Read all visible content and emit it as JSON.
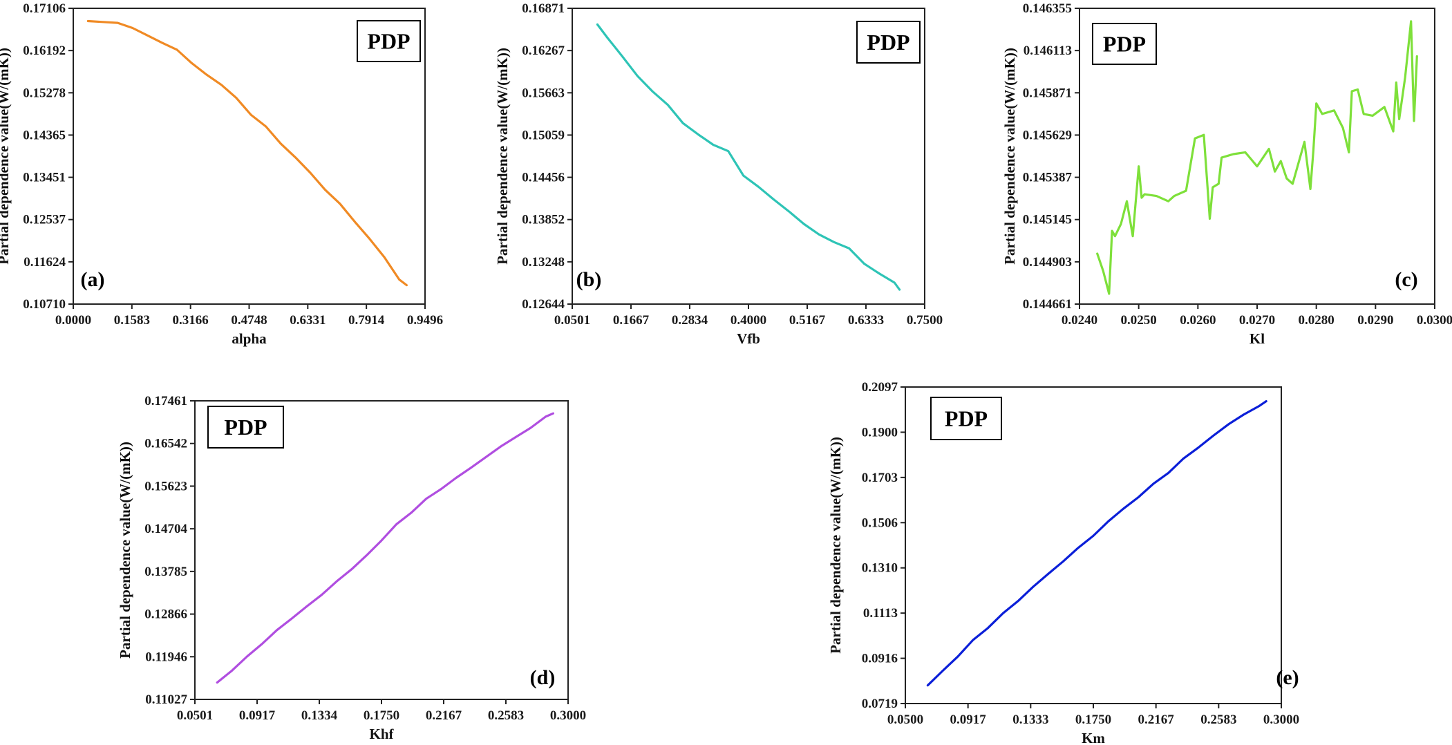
{
  "chart_data": [
    {
      "type": "line",
      "panel_label": "(a)",
      "legend_label": "PDP",
      "legend_position": "top-right",
      "xlabel": "alpha",
      "ylabel": "Partial dependence value(W/(mK))",
      "xlim": [
        0.0,
        0.9496
      ],
      "ylim": [
        0.1071,
        0.17106
      ],
      "xticks": [
        "0.0000",
        "0.1583",
        "0.3166",
        "0.4748",
        "0.6331",
        "0.7914",
        "0.9496"
      ],
      "yticks": [
        "0.10710",
        "0.11624",
        "0.12537",
        "0.13451",
        "0.14365",
        "0.15278",
        "0.16192",
        "0.17106"
      ],
      "grid": false,
      "color": "#f08a24",
      "series": [
        {
          "x": [
            0.04,
            0.08,
            0.12,
            0.16,
            0.2,
            0.24,
            0.28,
            0.32,
            0.36,
            0.4,
            0.44,
            0.48,
            0.52,
            0.56,
            0.6,
            0.64,
            0.68,
            0.72,
            0.76,
            0.8,
            0.84,
            0.88,
            0.9
          ],
          "y": [
            0.1683,
            0.1681,
            0.1679,
            0.1668,
            0.1652,
            0.1636,
            0.1621,
            0.1592,
            0.1567,
            0.1545,
            0.1517,
            0.148,
            0.1455,
            0.1418,
            0.1388,
            0.1355,
            0.1318,
            0.1288,
            0.1249,
            0.1212,
            0.1172,
            0.1124,
            0.1112
          ]
        }
      ]
    },
    {
      "type": "line",
      "panel_label": "(b)",
      "legend_label": "PDP",
      "legend_position": "top-right",
      "xlabel": "Vfb",
      "ylabel": "Partial dependence value(W/(mK))",
      "xlim": [
        0.0501,
        0.75
      ],
      "ylim": [
        0.12644,
        0.16871
      ],
      "xticks": [
        "0.0501",
        "0.1667",
        "0.2834",
        "0.4000",
        "0.5167",
        "0.6333",
        "0.7500"
      ],
      "yticks": [
        "0.12644",
        "0.13248",
        "0.13852",
        "0.14456",
        "0.15059",
        "0.15663",
        "0.16267",
        "0.16871"
      ],
      "grid": false,
      "color": "#2ec4b6",
      "series": [
        {
          "x": [
            0.1,
            0.12,
            0.15,
            0.18,
            0.21,
            0.24,
            0.27,
            0.3,
            0.33,
            0.36,
            0.39,
            0.42,
            0.45,
            0.48,
            0.51,
            0.54,
            0.57,
            0.6,
            0.63,
            0.66,
            0.69,
            0.7
          ],
          "y": [
            0.1664,
            0.1645,
            0.1618,
            0.159,
            0.1568,
            0.1549,
            0.1523,
            0.1507,
            0.1492,
            0.1483,
            0.1448,
            0.1432,
            0.1414,
            0.1397,
            0.1379,
            0.1364,
            0.1353,
            0.1344,
            0.1322,
            0.1308,
            0.1295,
            0.1285
          ]
        }
      ]
    },
    {
      "type": "line",
      "panel_label": "(c)",
      "legend_label": "PDP",
      "legend_position": "top-left",
      "xlabel": "Kl",
      "ylabel": "Partial dependence value(W/(mK))",
      "xlim": [
        0.024,
        0.03
      ],
      "ylim": [
        0.144661,
        0.146355
      ],
      "xticks": [
        "0.0240",
        "0.0250",
        "0.0260",
        "0.0270",
        "0.0280",
        "0.0290",
        "0.0300"
      ],
      "yticks": [
        "0.144661",
        "0.144903",
        "0.145145",
        "0.145387",
        "0.145629",
        "0.145871",
        "0.146113",
        "0.146355"
      ],
      "grid": false,
      "color": "#7ee03a",
      "series": [
        {
          "x": [
            0.0243,
            0.0244,
            0.0245,
            0.02455,
            0.0246,
            0.0247,
            0.0248,
            0.0249,
            0.025,
            0.02505,
            0.0251,
            0.0253,
            0.0255,
            0.0256,
            0.0258,
            0.02595,
            0.0261,
            0.0262,
            0.02625,
            0.02635,
            0.0264,
            0.0266,
            0.0268,
            0.027,
            0.0272,
            0.0273,
            0.0274,
            0.0275,
            0.0276,
            0.0278,
            0.0279,
            0.02795,
            0.028,
            0.0281,
            0.0283,
            0.02845,
            0.02855,
            0.0286,
            0.0287,
            0.0288,
            0.02895,
            0.02915,
            0.0293,
            0.02935,
            0.0294,
            0.0295,
            0.0296,
            0.02965,
            0.0297
          ],
          "y": [
            0.14495,
            0.14485,
            0.14472,
            0.14508,
            0.14505,
            0.14512,
            0.14525,
            0.14505,
            0.14545,
            0.14527,
            0.14529,
            0.14528,
            0.14525,
            0.14528,
            0.14531,
            0.14561,
            0.14563,
            0.14515,
            0.14533,
            0.14535,
            0.1455,
            0.14552,
            0.14553,
            0.14545,
            0.14555,
            0.14542,
            0.14548,
            0.14538,
            0.14535,
            0.14559,
            0.14532,
            0.14554,
            0.14581,
            0.14575,
            0.14577,
            0.14567,
            0.14553,
            0.14588,
            0.14589,
            0.14575,
            0.14574,
            0.14579,
            0.14565,
            0.14593,
            0.14572,
            0.14596,
            0.14628,
            0.14571,
            0.14608
          ]
        }
      ]
    },
    {
      "type": "line",
      "panel_label": "(d)",
      "legend_label": "PDP",
      "legend_position": "top-left",
      "xlabel": "Khf",
      "ylabel": "Partial dependence value(W/(mK))",
      "xlim": [
        0.0501,
        0.3
      ],
      "ylim": [
        0.11027,
        0.17461
      ],
      "xticks": [
        "0.0501",
        "0.0917",
        "0.1334",
        "0.1750",
        "0.2167",
        "0.2583",
        "0.3000"
      ],
      "yticks": [
        "0.11027",
        "0.11946",
        "0.12866",
        "0.13785",
        "0.14704",
        "0.15623",
        "0.16542",
        "0.17461"
      ],
      "grid": false,
      "color": "#b04ee0",
      "series": [
        {
          "x": [
            0.065,
            0.075,
            0.085,
            0.095,
            0.105,
            0.115,
            0.125,
            0.135,
            0.145,
            0.155,
            0.165,
            0.175,
            0.185,
            0.195,
            0.205,
            0.215,
            0.225,
            0.235,
            0.245,
            0.255,
            0.265,
            0.275,
            0.285,
            0.29
          ],
          "y": [
            0.1139,
            0.1165,
            0.1195,
            0.1222,
            0.1252,
            0.1277,
            0.1303,
            0.1328,
            0.1357,
            0.1383,
            0.1413,
            0.1445,
            0.148,
            0.1505,
            0.1535,
            0.1556,
            0.158,
            0.1602,
            0.1625,
            0.1648,
            0.1668,
            0.1688,
            0.1712,
            0.1719
          ]
        }
      ]
    },
    {
      "type": "line",
      "panel_label": "(e)",
      "legend_label": "PDP",
      "legend_position": "top-left",
      "xlabel": "Km",
      "ylabel": "Partial dependence value(W/(mK))",
      "xlim": [
        0.0501,
        0.3
      ],
      "ylim": [
        0.0719,
        0.2097
      ],
      "xticks": [
        "0.0500",
        "0.0917",
        "0.1333",
        "0.1750",
        "0.2167",
        "0.2583",
        "0.3000"
      ],
      "yticks": [
        "0.0719",
        "0.0916",
        "0.1113",
        "0.1310",
        "0.1506",
        "0.1703",
        "0.1900",
        "0.2097"
      ],
      "grid": false,
      "color": "#0b1fd8",
      "series": [
        {
          "x": [
            0.065,
            0.075,
            0.085,
            0.095,
            0.105,
            0.115,
            0.125,
            0.135,
            0.145,
            0.155,
            0.165,
            0.175,
            0.185,
            0.195,
            0.205,
            0.215,
            0.225,
            0.235,
            0.245,
            0.255,
            0.265,
            0.275,
            0.285,
            0.29
          ],
          "y": [
            0.0798,
            0.0862,
            0.0924,
            0.0995,
            0.1048,
            0.1112,
            0.1165,
            0.1227,
            0.1283,
            0.1338,
            0.1397,
            0.1449,
            0.1512,
            0.1567,
            0.1617,
            0.1676,
            0.1723,
            0.1786,
            0.1834,
            0.1886,
            0.1935,
            0.1977,
            0.2013,
            0.2035
          ]
        }
      ]
    }
  ]
}
